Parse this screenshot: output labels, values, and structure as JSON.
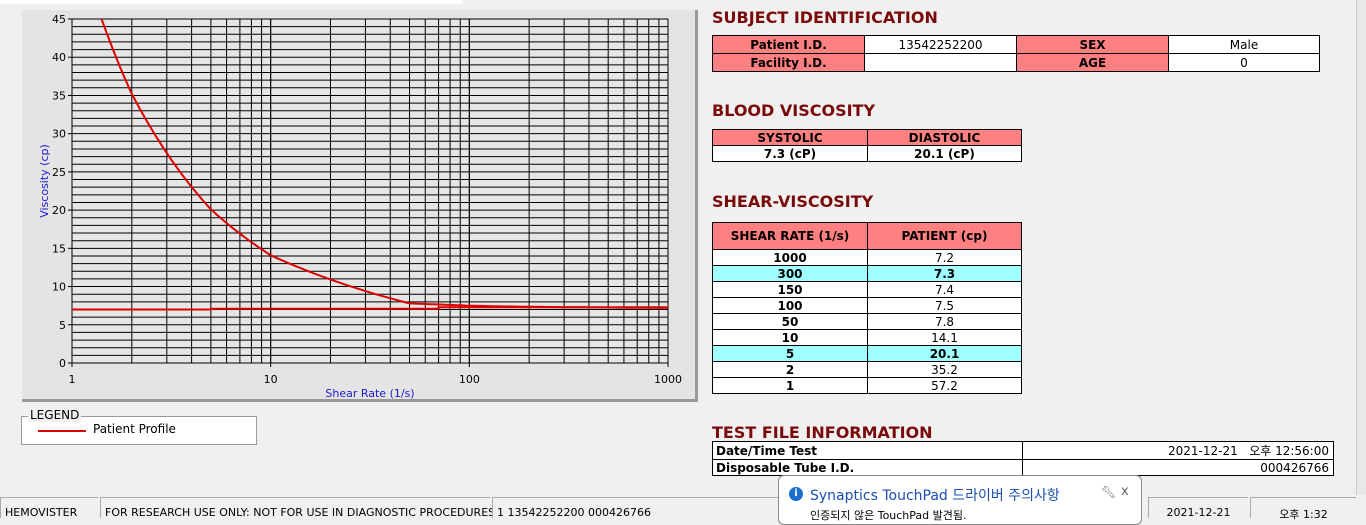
{
  "chart_data": {
    "type": "line",
    "xlabel": "Shear Rate (1/s)",
    "ylabel": "Viscosity (cp)",
    "xscale": "log",
    "xlim": [
      1,
      1000
    ],
    "ylim": [
      0,
      45
    ],
    "xticks": [
      "1",
      "10",
      "100",
      "1000"
    ],
    "yticks": [
      "0",
      "5",
      "10",
      "15",
      "20",
      "25",
      "30",
      "35",
      "40",
      "45"
    ],
    "grid": true,
    "color": "#dd0000",
    "series": [
      {
        "name": "Patient Profile",
        "x": [
          1,
          2,
          5,
          10,
          50,
          100,
          150,
          300,
          1000
        ],
        "y": [
          57.2,
          35.2,
          20.1,
          14.1,
          7.8,
          7.5,
          7.4,
          7.3,
          7.2
        ]
      },
      {
        "x": [
          1,
          5,
          5,
          70,
          70,
          1000
        ],
        "y": [
          7.0,
          7.0,
          7.1,
          7.1,
          7.3,
          7.3
        ]
      }
    ]
  },
  "legend": {
    "title": "LEGEND",
    "items": [
      {
        "label": "Patient Profile",
        "color": "#dd0000"
      }
    ]
  },
  "subject": {
    "title": "SUBJECT IDENTIFICATION",
    "patient_id_label": "Patient I.D.",
    "patient_id": "13542252200",
    "sex_label": "SEX",
    "sex": "Male",
    "facility_label": "Facility I.D.",
    "facility": "",
    "age_label": "AGE",
    "age": "0"
  },
  "blood": {
    "title": "BLOOD VISCOSITY",
    "systolic_label": "SYSTOLIC",
    "diastolic_label": "DIASTOLIC",
    "systolic": "7.3 (cP)",
    "diastolic": "20.1 (cP)"
  },
  "shear": {
    "title": "SHEAR-VISCOSITY",
    "col1": "SHEAR RATE (1/s)",
    "col2": "PATIENT (cp)",
    "rows": [
      {
        "rate": "1000",
        "val": "7.2"
      },
      {
        "rate": "300",
        "val": "7.3",
        "hl": true
      },
      {
        "rate": "150",
        "val": "7.4"
      },
      {
        "rate": "100",
        "val": "7.5"
      },
      {
        "rate": "50",
        "val": "7.8"
      },
      {
        "rate": "10",
        "val": "14.1"
      },
      {
        "rate": "5",
        "val": "20.1",
        "hl": true
      },
      {
        "rate": "2",
        "val": "35.2"
      },
      {
        "rate": "1",
        "val": "57.2"
      }
    ]
  },
  "testfile": {
    "title": "TEST FILE INFORMATION",
    "date_label": "Date/Time Test",
    "date": "2021-12-21   오후 12:56:00",
    "tube_label": "Disposable Tube I.D.",
    "tube": "000426766"
  },
  "status": {
    "app": "HEMOVISTER",
    "notice": "FOR RESEARCH USE ONLY: NOT FOR USE IN DIAGNOSTIC PROCEDURES",
    "record": "1  13542252200  000426766",
    "date": "2021-12-21",
    "time": "오후 1:32"
  },
  "popup": {
    "title": "Synaptics TouchPad 드라이버 주의사항",
    "body": "인증되지 않은 TouchPad 발견됨.",
    "close": "x"
  }
}
